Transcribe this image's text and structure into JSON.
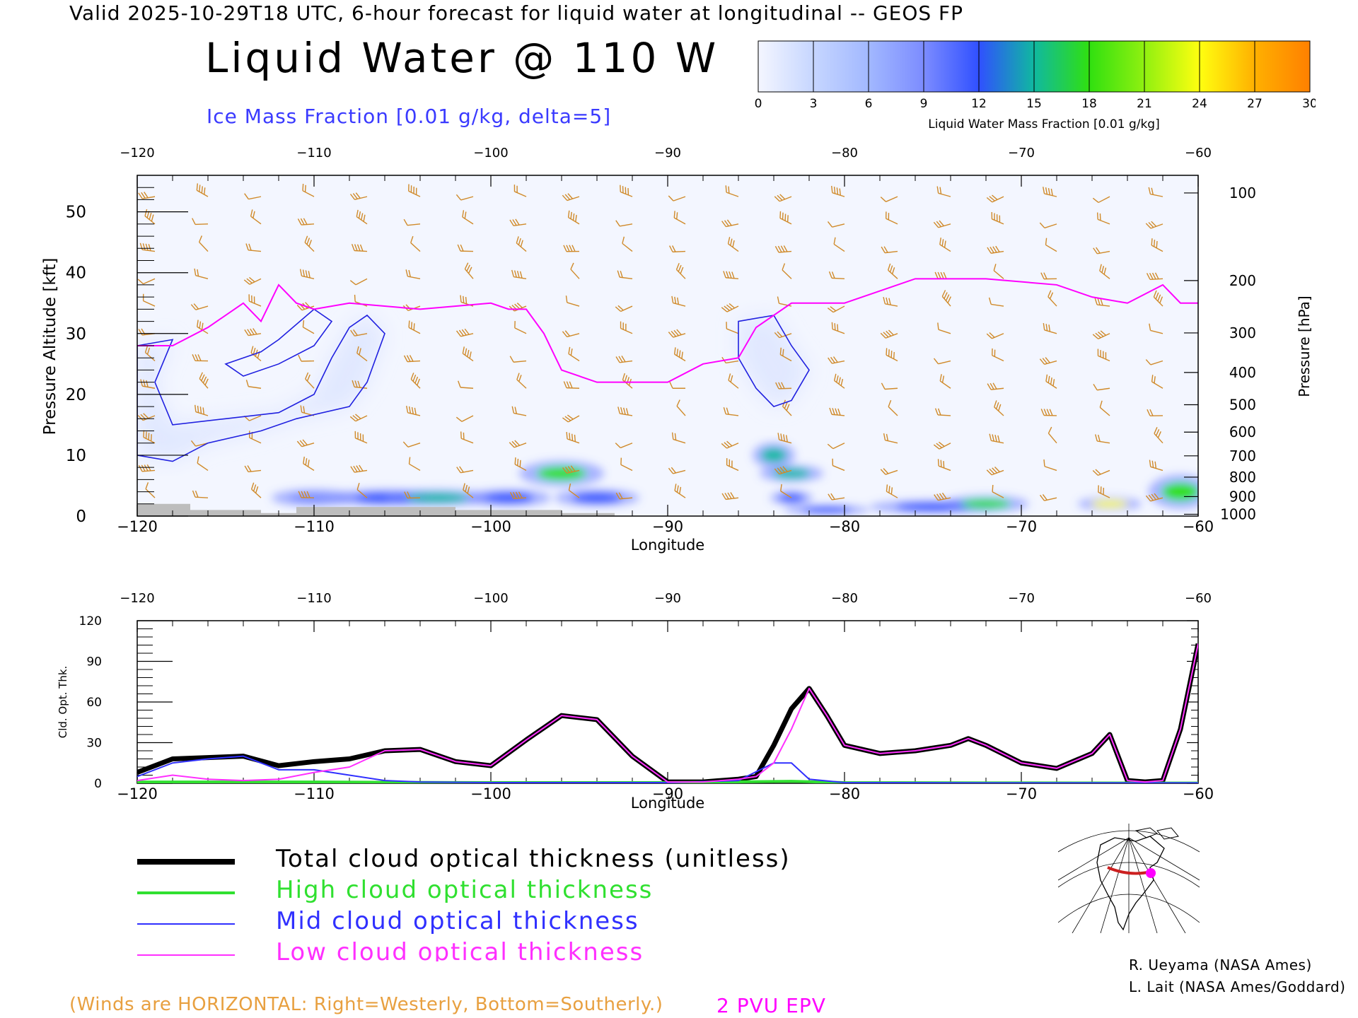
{
  "header": {
    "valid_line": "Valid 2025-10-29T18 UTC, 6-hour forecast for liquid water at longitudinal -- GEOS FP",
    "title": "Liquid Water @ 110 W",
    "subtitle": "Ice Mass Fraction [0.01 g/kg, delta=5]"
  },
  "colorbar": {
    "label": "Liquid Water Mass Fraction [0.01 g/kg]",
    "ticks": [
      "0",
      "3",
      "6",
      "9",
      "12",
      "15",
      "18",
      "21",
      "24",
      "27",
      "30"
    ],
    "colors": [
      "#f4f6ff",
      "#c6d6ff",
      "#a2b8ff",
      "#7c8cff",
      "#3050ff",
      "#10b8a0",
      "#30e010",
      "#90f010",
      "#ffff10",
      "#ffb000",
      "#ff8000",
      "#ff3000"
    ]
  },
  "footer": {
    "winds_note": "(Winds are HORIZONTAL: Right=Westerly, Bottom=Southerly.)",
    "epv_note": "2 PVU EPV",
    "credits": [
      "R. Ueyama (NASA Ames)",
      "L. Lait (NASA Ames/Goddard)"
    ]
  },
  "legend": [
    {
      "label": "Total cloud optical thickness (unitless)",
      "color": "#000000"
    },
    {
      "label": "High cloud optical thickness",
      "color": "#30e030"
    },
    {
      "label": "Mid cloud optical thickness",
      "color": "#3030ff"
    },
    {
      "label": "Low cloud optical thickness",
      "color": "#ff30ff"
    }
  ],
  "chart_data": [
    {
      "type": "heatmap",
      "xlabel": "Longitude",
      "ylabel": "Pressure Altitude [kft]",
      "y2label": "Pressure [hPa]",
      "xlim": [
        -120,
        -60
      ],
      "ylim": [
        0,
        56
      ],
      "xticks": [
        -120,
        -110,
        -100,
        -90,
        -80,
        -70,
        -60
      ],
      "yticks": [
        0,
        10,
        20,
        30,
        40,
        50
      ],
      "pressure_ticks": [
        {
          "p": "100",
          "kft": 53.1
        },
        {
          "p": "200",
          "kft": 38.7
        },
        {
          "p": "300",
          "kft": 30.1
        },
        {
          "p": "400",
          "kft": 23.6
        },
        {
          "p": "500",
          "kft": 18.3
        },
        {
          "p": "600",
          "kft": 13.8
        },
        {
          "p": "700",
          "kft": 9.9
        },
        {
          "p": "800",
          "kft": 6.4
        },
        {
          "p": "900",
          "kft": 3.2
        },
        {
          "p": "1000",
          "kft": 0.3
        }
      ],
      "tropopause_epv": [
        [
          -120,
          28
        ],
        [
          -118,
          28
        ],
        [
          -116,
          31
        ],
        [
          -114,
          35
        ],
        [
          -113,
          32
        ],
        [
          -112,
          38
        ],
        [
          -111,
          35
        ],
        [
          -110,
          34
        ],
        [
          -108,
          35
        ],
        [
          -104,
          34
        ],
        [
          -100,
          35
        ],
        [
          -99,
          34
        ],
        [
          -98,
          34
        ],
        [
          -97,
          30
        ],
        [
          -96,
          24
        ],
        [
          -94,
          22
        ],
        [
          -90,
          22
        ],
        [
          -88,
          25
        ],
        [
          -86,
          26
        ],
        [
          -85,
          31
        ],
        [
          -83,
          35
        ],
        [
          -80,
          35
        ],
        [
          -78,
          37
        ],
        [
          -76,
          39
        ],
        [
          -72,
          39
        ],
        [
          -68,
          38
        ],
        [
          -66,
          36
        ],
        [
          -64,
          35
        ],
        [
          -62,
          38
        ],
        [
          -61,
          35
        ],
        [
          -60,
          35
        ]
      ],
      "liquid_water_patches": [
        {
          "x": -110,
          "y": 3,
          "rx": 2.0,
          "ry": 1.0,
          "v": 10
        },
        {
          "x": -106,
          "y": 3,
          "rx": 2.5,
          "ry": 1.0,
          "v": 12
        },
        {
          "x": -103,
          "y": 3,
          "rx": 2.5,
          "ry": 1.0,
          "v": 16
        },
        {
          "x": -99,
          "y": 3,
          "rx": 2.0,
          "ry": 1.0,
          "v": 14
        },
        {
          "x": -96,
          "y": 7,
          "rx": 2.0,
          "ry": 1.5,
          "v": 18
        },
        {
          "x": -94,
          "y": 3,
          "rx": 2.0,
          "ry": 1.0,
          "v": 14
        },
        {
          "x": -84,
          "y": 10,
          "rx": 1.0,
          "ry": 1.5,
          "v": 16
        },
        {
          "x": -83,
          "y": 7,
          "rx": 1.5,
          "ry": 1.0,
          "v": 16
        },
        {
          "x": -83,
          "y": 3,
          "rx": 1.0,
          "ry": 0.8,
          "v": 14
        },
        {
          "x": -81,
          "y": 1,
          "rx": 2.0,
          "ry": 0.6,
          "v": 12
        },
        {
          "x": -75,
          "y": 1.5,
          "rx": 3.0,
          "ry": 0.8,
          "v": 14
        },
        {
          "x": -72,
          "y": 2,
          "rx": 2.0,
          "ry": 1.0,
          "v": 20
        },
        {
          "x": -65,
          "y": 2,
          "rx": 1.5,
          "ry": 0.8,
          "v": 26
        },
        {
          "x": -61,
          "y": 4,
          "rx": 1.5,
          "ry": 2.0,
          "v": 18
        }
      ],
      "ice_contours": [
        [
          [
            -120,
            10
          ],
          [
            -118,
            9
          ],
          [
            -116,
            12
          ],
          [
            -113,
            14
          ],
          [
            -111,
            16
          ],
          [
            -108,
            18
          ],
          [
            -107,
            22
          ],
          [
            -106,
            30
          ],
          [
            -107,
            33
          ],
          [
            -108,
            31
          ],
          [
            -109,
            26
          ],
          [
            -110,
            20
          ],
          [
            -112,
            17
          ],
          [
            -115,
            16
          ],
          [
            -118,
            15
          ],
          [
            -119,
            22
          ],
          [
            -118,
            29
          ],
          [
            -120,
            28
          ]
        ],
        [
          [
            -115,
            25
          ],
          [
            -113,
            27
          ],
          [
            -112,
            29
          ],
          [
            -110,
            34
          ],
          [
            -109,
            32
          ],
          [
            -110,
            28
          ],
          [
            -112,
            25
          ],
          [
            -114,
            23
          ],
          [
            -115,
            25
          ]
        ],
        [
          [
            -86,
            32
          ],
          [
            -84,
            33
          ],
          [
            -83,
            28
          ],
          [
            -82,
            24
          ],
          [
            -83,
            19
          ],
          [
            -84,
            18
          ],
          [
            -85,
            21
          ],
          [
            -86,
            26
          ],
          [
            -86,
            32
          ]
        ]
      ]
    },
    {
      "type": "line",
      "xlabel": "Longitude",
      "ylabel": "Cld. Opt. Thk.",
      "xlim": [
        -120,
        -60
      ],
      "ylim": [
        0,
        120
      ],
      "xticks": [
        -120,
        -110,
        -100,
        -90,
        -80,
        -70,
        -60
      ],
      "yticks": [
        0,
        30,
        60,
        90,
        120
      ],
      "series": [
        {
          "name": "Total cloud optical thickness (unitless)",
          "color": "#000000",
          "width": 7,
          "x": [
            -120,
            -118,
            -116,
            -114,
            -112,
            -110,
            -108,
            -106,
            -104,
            -102,
            -100,
            -98,
            -96,
            -94,
            -92,
            -90,
            -88,
            -86,
            -85,
            -84,
            -83,
            -82,
            -81,
            -80,
            -78,
            -76,
            -74,
            -73,
            -72,
            -70,
            -68,
            -66,
            -65,
            -64,
            -63,
            -62,
            -61,
            -60
          ],
          "y": [
            8,
            18,
            19,
            20,
            13,
            16,
            18,
            24,
            25,
            16,
            13,
            32,
            50,
            47,
            20,
            1,
            1,
            3,
            5,
            28,
            55,
            70,
            50,
            28,
            22,
            24,
            28,
            33,
            28,
            15,
            11,
            22,
            36,
            2,
            1,
            2,
            40,
            103
          ]
        },
        {
          "name": "High cloud optical thickness",
          "color": "#30e030",
          "width": 4,
          "x": [
            -120,
            -110,
            -100,
            -90,
            -83,
            -80,
            -70,
            -60
          ],
          "y": [
            1,
            1,
            0.5,
            0.5,
            1.5,
            0.5,
            0.3,
            0.2
          ]
        },
        {
          "name": "Mid cloud optical thickness",
          "color": "#3030ff",
          "width": 2,
          "x": [
            -120,
            -118,
            -116,
            -114,
            -112,
            -110,
            -108,
            -106,
            -104,
            -100,
            -90,
            -86,
            -84,
            -83,
            -82,
            -80,
            -70,
            -60
          ],
          "y": [
            5,
            15,
            18,
            20,
            10,
            10,
            6,
            2,
            1,
            0.5,
            0.5,
            2,
            15,
            15,
            3,
            0.5,
            0.3,
            0.3
          ]
        },
        {
          "name": "Low cloud optical thickness",
          "color": "#ff30ff",
          "width": 2,
          "x": [
            -120,
            -118,
            -116,
            -114,
            -112,
            -110,
            -108,
            -106,
            -104,
            -102,
            -100,
            -98,
            -96,
            -94,
            -92,
            -90,
            -88,
            -86,
            -85,
            -84,
            -83,
            -82,
            -81,
            -80,
            -78,
            -76,
            -74,
            -73,
            -72,
            -70,
            -68,
            -66,
            -65,
            -64,
            -63,
            -62,
            -61,
            -60
          ],
          "y": [
            2,
            6,
            3,
            2,
            3,
            8,
            12,
            24,
            25,
            16,
            13,
            32,
            50,
            47,
            20,
            1,
            1,
            3,
            5,
            15,
            40,
            70,
            50,
            28,
            22,
            24,
            28,
            33,
            28,
            15,
            11,
            22,
            36,
            2,
            1,
            2,
            40,
            103
          ]
        }
      ]
    }
  ]
}
